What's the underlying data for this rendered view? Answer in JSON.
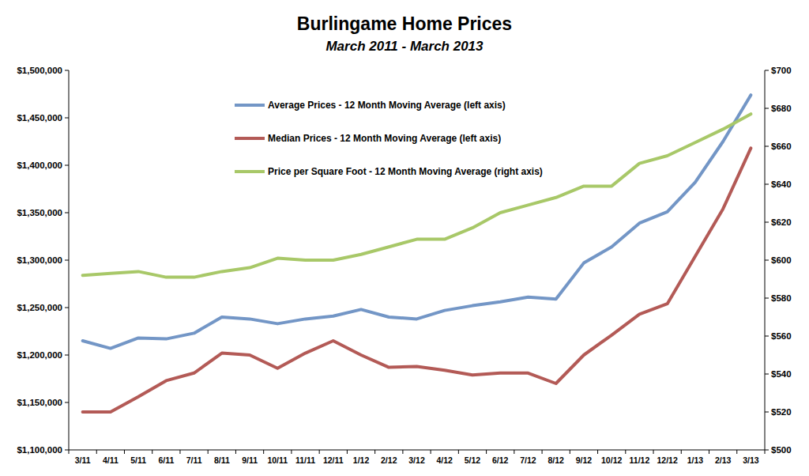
{
  "chart_data": {
    "type": "line",
    "title": "Burlingame Home Prices",
    "subtitle": "March 2011 - March 2013",
    "categories": [
      "3/11",
      "4/11",
      "5/11",
      "6/11",
      "7/11",
      "8/11",
      "9/11",
      "10/11",
      "11/11",
      "12/11",
      "1/12",
      "2/12",
      "3/12",
      "4/12",
      "5/12",
      "6/12",
      "7/12",
      "8/12",
      "9/12",
      "10/12",
      "11/12",
      "12/12",
      "1/13",
      "2/13",
      "3/13"
    ],
    "series": [
      {
        "name": "Average Prices - 12 Month Moving Average (left axis)",
        "color": "#7396c6",
        "values": [
          1215000,
          1207000,
          1218000,
          1217000,
          1223000,
          1240000,
          1238000,
          1233000,
          1238000,
          1241000,
          1248000,
          1240000,
          1238000,
          1247000,
          1252000,
          1256000,
          1261000,
          1259000,
          1297000,
          1314000,
          1339000,
          1351000,
          1382000,
          1425000,
          1474000
        ]
      },
      {
        "name": "Median Prices - 12 Month Moving Average (left axis)",
        "color": "#b35a56",
        "values": [
          1140000,
          1140000,
          1156000,
          1173000,
          1181000,
          1202000,
          1200000,
          1186000,
          1202000,
          1215000,
          1200000,
          1187000,
          1188000,
          1184000,
          1179000,
          1181000,
          1181000,
          1170000,
          1200000,
          1221000,
          1243000,
          1254000,
          1304000,
          1354000,
          1418000
        ]
      },
      {
        "name": "Price per Square Foot - 12 Month Moving Average (right axis)",
        "color": "#a8c868",
        "axis": "y2",
        "values": [
          592,
          593,
          594,
          591,
          591,
          594,
          596,
          601,
          600,
          600,
          603,
          607,
          611,
          611,
          617,
          625,
          629,
          633,
          639,
          639,
          651,
          655,
          662,
          669,
          677
        ]
      }
    ],
    "ylim": [
      1100000,
      1500000
    ],
    "yticks": [
      {
        "value": 1100000,
        "label": "$1,100,000"
      },
      {
        "value": 1150000,
        "label": "$1,150,000"
      },
      {
        "value": 1200000,
        "label": "$1,200,000"
      },
      {
        "value": 1250000,
        "label": "$1,250,000"
      },
      {
        "value": 1300000,
        "label": "$1,300,000"
      },
      {
        "value": 1350000,
        "label": "$1,350,000"
      },
      {
        "value": 1400000,
        "label": "$1,400,000"
      },
      {
        "value": 1450000,
        "label": "$1,450,000"
      },
      {
        "value": 1500000,
        "label": "$1,500,000"
      }
    ],
    "y2lim": [
      500,
      700
    ],
    "y2ticks": [
      {
        "value": 500,
        "label": "$500"
      },
      {
        "value": 520,
        "label": "$520"
      },
      {
        "value": 540,
        "label": "$540"
      },
      {
        "value": 560,
        "label": "$560"
      },
      {
        "value": 580,
        "label": "$580"
      },
      {
        "value": 600,
        "label": "$600"
      },
      {
        "value": 620,
        "label": "$620"
      },
      {
        "value": 640,
        "label": "$640"
      },
      {
        "value": 660,
        "label": "$660"
      },
      {
        "value": 680,
        "label": "$680"
      },
      {
        "value": 700,
        "label": "$700"
      }
    ],
    "grid": false,
    "legend": "top-left"
  }
}
